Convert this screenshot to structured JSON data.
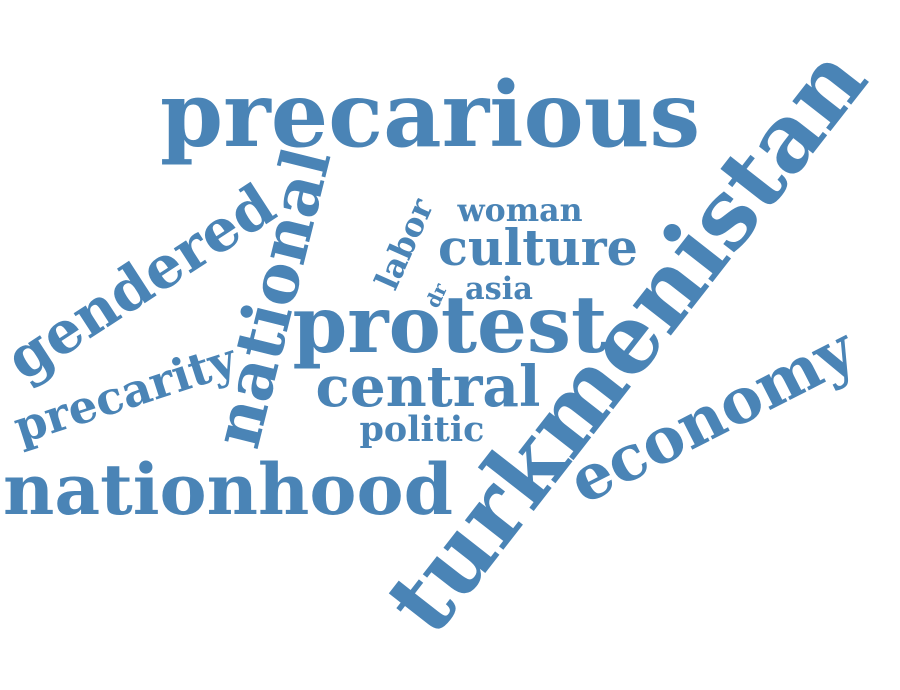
{
  "wordcloud": {
    "color": "#4a84b6",
    "words": [
      {
        "key": "turkmenistan",
        "text": "turkmenistan"
      },
      {
        "key": "precarious",
        "text": "precarious"
      },
      {
        "key": "protest",
        "text": "protest"
      },
      {
        "key": "nationhood",
        "text": "nationhood"
      },
      {
        "key": "national",
        "text": "national"
      },
      {
        "key": "gendered",
        "text": "gendered"
      },
      {
        "key": "economy",
        "text": "economy"
      },
      {
        "key": "central",
        "text": "central"
      },
      {
        "key": "culture",
        "text": "culture"
      },
      {
        "key": "precarity",
        "text": "precarity"
      },
      {
        "key": "politic",
        "text": "politic"
      },
      {
        "key": "labor",
        "text": "labor"
      },
      {
        "key": "woman",
        "text": "woman"
      },
      {
        "key": "asia",
        "text": "asia"
      },
      {
        "key": "dr",
        "text": "dr"
      }
    ]
  }
}
